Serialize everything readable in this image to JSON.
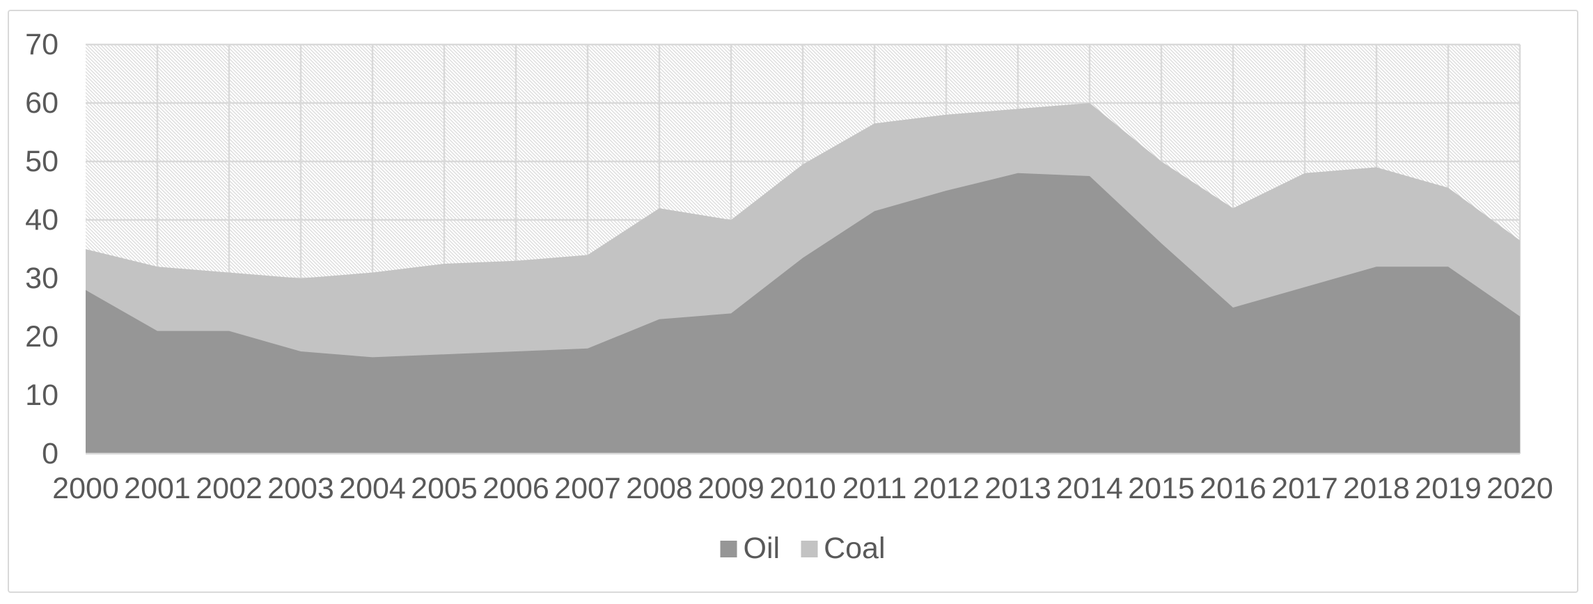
{
  "chart_data": {
    "type": "area",
    "stacked": true,
    "title": "",
    "xlabel": "",
    "ylabel": "",
    "categories": [
      "2000",
      "2001",
      "2002",
      "2003",
      "2004",
      "2005",
      "2006",
      "2007",
      "2008",
      "2009",
      "2010",
      "2011",
      "2012",
      "2013",
      "2014",
      "2015",
      "2016",
      "2017",
      "2018",
      "2019",
      "2020"
    ],
    "series": [
      {
        "name": "Oil",
        "color": "#969696",
        "values": [
          28,
          21,
          21,
          17.5,
          16.5,
          17,
          17.5,
          18,
          23,
          24,
          33.5,
          41.5,
          45,
          48,
          47.5,
          36,
          25,
          28.5,
          32,
          32,
          23.5
        ]
      },
      {
        "name": "Coal",
        "color": "#c3c3c3",
        "values": [
          7,
          11,
          10,
          12.5,
          14.5,
          15.5,
          15.5,
          16,
          19,
          16,
          16,
          15,
          13,
          11,
          12.5,
          14,
          17,
          19.5,
          17,
          13.5,
          13
        ]
      }
    ],
    "ylim": [
      0,
      70
    ],
    "y_ticks": [
      "0",
      "10",
      "20",
      "30",
      "40",
      "50",
      "60",
      "70"
    ],
    "grid": true,
    "legend_position": "bottom-center",
    "plot_area_pattern": "diagonal-hatch",
    "colors": {
      "gridline": "#d9d9d9",
      "hatch_line": "#dadada",
      "axis_text": "#595959",
      "frame_border": "#d9d9d9",
      "background": "#ffffff"
    }
  },
  "legend": {
    "items": [
      {
        "label": "Oil",
        "swatch_color": "#969696"
      },
      {
        "label": "Coal",
        "swatch_color": "#c3c3c3"
      }
    ]
  }
}
